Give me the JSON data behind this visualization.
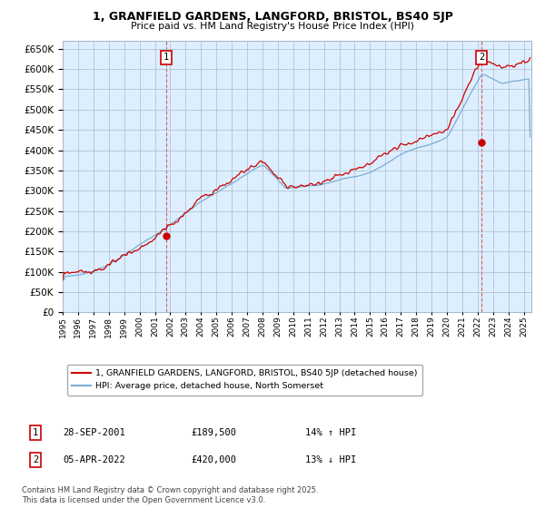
{
  "title": "1, GRANFIELD GARDENS, LANGFORD, BRISTOL, BS40 5JP",
  "subtitle": "Price paid vs. HM Land Registry's House Price Index (HPI)",
  "legend_property": "1, GRANFIELD GARDENS, LANGFORD, BRISTOL, BS40 5JP (detached house)",
  "legend_hpi": "HPI: Average price, detached house, North Somerset",
  "property_color": "#cc0000",
  "hpi_color": "#7aadd4",
  "background_color": "#ffffff",
  "chart_bg_color": "#ddeeff",
  "grid_color": "#aabbcc",
  "ylim": [
    0,
    670000
  ],
  "yticks": [
    0,
    50000,
    100000,
    150000,
    200000,
    250000,
    300000,
    350000,
    400000,
    450000,
    500000,
    550000,
    600000,
    650000
  ],
  "t1_year_float": 2001.75,
  "t1_price": 189500,
  "t2_year_float": 2022.25,
  "t2_price": 420000,
  "transaction1": {
    "label": "1",
    "date": "28-SEP-2001",
    "price": "£189,500",
    "change": "14% ↑ HPI"
  },
  "transaction2": {
    "label": "2",
    "date": "05-APR-2022",
    "price": "£420,000",
    "change": "13% ↓ HPI"
  },
  "footnote": "Contains HM Land Registry data © Crown copyright and database right 2025.\nThis data is licensed under the Open Government Licence v3.0."
}
